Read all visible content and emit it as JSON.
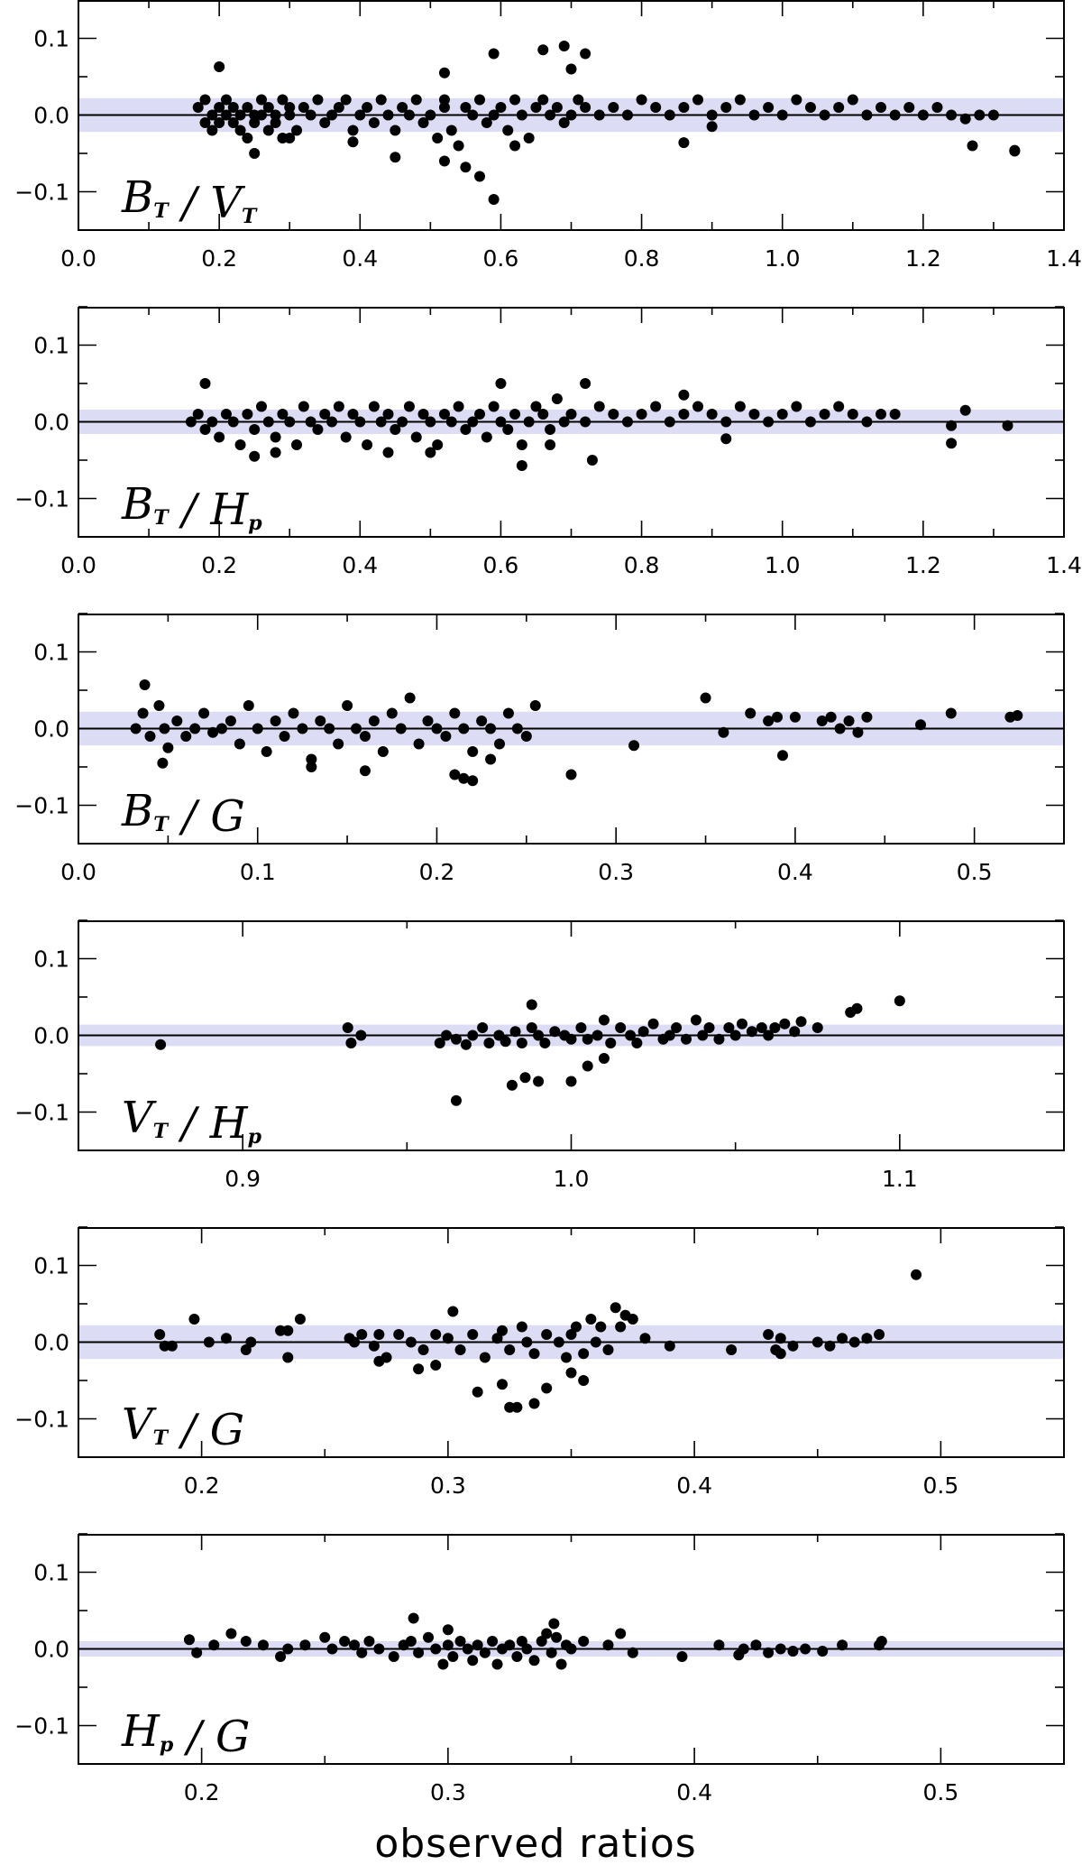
{
  "chart_data": [
    {
      "type": "scatter",
      "label_parts": [
        [
          "B",
          "T",
          "sub"
        ],
        [
          " / ",
          null,
          null
        ],
        [
          "V",
          "T",
          "sub"
        ]
      ],
      "xlim": [
        0.0,
        1.4
      ],
      "xticks": [
        0.0,
        0.2,
        0.4,
        0.6,
        0.8,
        1.0,
        1.2,
        1.4
      ],
      "ylim": [
        -0.15,
        0.15
      ],
      "yticks": [
        -0.1,
        0.0,
        0.1
      ],
      "band": [
        -0.022,
        0.022
      ],
      "x": [
        0.17,
        0.18,
        0.18,
        0.19,
        0.19,
        0.2,
        0.2,
        0.21,
        0.21,
        0.22,
        0.22,
        0.23,
        0.23,
        0.24,
        0.24,
        0.25,
        0.25,
        0.26,
        0.26,
        0.27,
        0.27,
        0.28,
        0.28,
        0.29,
        0.29,
        0.3,
        0.3,
        0.31,
        0.32,
        0.33,
        0.34,
        0.35,
        0.36,
        0.37,
        0.38,
        0.39,
        0.4,
        0.41,
        0.42,
        0.43,
        0.44,
        0.45,
        0.46,
        0.47,
        0.48,
        0.49,
        0.5,
        0.51,
        0.52,
        0.52,
        0.53,
        0.54,
        0.55,
        0.56,
        0.57,
        0.58,
        0.59,
        0.6,
        0.61,
        0.62,
        0.63,
        0.64,
        0.65,
        0.66,
        0.67,
        0.68,
        0.69,
        0.7,
        0.71,
        0.72,
        0.74,
        0.76,
        0.78,
        0.8,
        0.82,
        0.84,
        0.86,
        0.88,
        0.9,
        0.92,
        0.94,
        0.96,
        0.98,
        1.0,
        1.02,
        1.04,
        1.06,
        1.08,
        1.1,
        1.12,
        1.14,
        1.16,
        1.18,
        1.2,
        1.22,
        1.24,
        1.26,
        1.28,
        1.3,
        1.33,
        0.2,
        0.25,
        0.52,
        0.55,
        0.57,
        0.59,
        0.59,
        0.66,
        0.69,
        0.7,
        0.72,
        0.62,
        0.52,
        0.45,
        0.39,
        0.3,
        0.86,
        0.9,
        1.27,
        1.33
      ],
      "y": [
        0.01,
        -0.01,
        0.02,
        0.0,
        -0.02,
        0.01,
        -0.01,
        0.0,
        0.02,
        -0.01,
        0.01,
        0.0,
        -0.02,
        0.01,
        -0.03,
        0.0,
        -0.01,
        0.02,
        0.0,
        -0.02,
        0.01,
        -0.01,
        0.0,
        0.02,
        -0.03,
        0.01,
        0.0,
        -0.02,
        0.01,
        0.0,
        0.02,
        -0.01,
        0.0,
        0.01,
        0.02,
        -0.02,
        0.0,
        0.01,
        -0.01,
        0.02,
        0.0,
        -0.02,
        0.01,
        0.0,
        0.02,
        -0.01,
        0.0,
        -0.03,
        0.02,
        0.01,
        -0.02,
        -0.04,
        0.01,
        0.0,
        0.02,
        -0.01,
        0.0,
        0.01,
        -0.02,
        0.02,
        0.0,
        -0.03,
        0.01,
        0.02,
        0.0,
        0.01,
        -0.01,
        0.0,
        0.02,
        0.01,
        0.0,
        0.01,
        0.0,
        0.02,
        0.01,
        0.0,
        0.01,
        0.02,
        0.0,
        0.01,
        0.02,
        0.0,
        0.01,
        0.0,
        0.02,
        0.01,
        0.0,
        0.01,
        0.02,
        0.0,
        0.01,
        0.0,
        0.01,
        0.0,
        0.01,
        0.0,
        -0.005,
        0.0,
        0.0,
        -0.046,
        0.063,
        -0.05,
        0.055,
        -0.068,
        -0.08,
        0.08,
        -0.11,
        0.085,
        0.09,
        0.06,
        0.08,
        -0.04,
        -0.06,
        -0.055,
        -0.035,
        -0.03,
        -0.036,
        -0.015,
        -0.04,
        -0.047
      ]
    },
    {
      "type": "scatter",
      "label_parts": [
        [
          "B",
          "T",
          "sub"
        ],
        [
          " / ",
          null,
          null
        ],
        [
          "H",
          "p",
          "sub"
        ]
      ],
      "xlim": [
        0.0,
        1.4
      ],
      "xticks": [
        0.0,
        0.2,
        0.4,
        0.6,
        0.8,
        1.0,
        1.2,
        1.4
      ],
      "ylim": [
        -0.15,
        0.15
      ],
      "yticks": [
        -0.1,
        0.0,
        0.1
      ],
      "band": [
        -0.016,
        0.016
      ],
      "x": [
        0.16,
        0.17,
        0.18,
        0.19,
        0.2,
        0.21,
        0.22,
        0.23,
        0.24,
        0.25,
        0.26,
        0.27,
        0.28,
        0.29,
        0.3,
        0.31,
        0.32,
        0.33,
        0.34,
        0.35,
        0.36,
        0.37,
        0.38,
        0.39,
        0.4,
        0.41,
        0.42,
        0.43,
        0.44,
        0.45,
        0.46,
        0.47,
        0.48,
        0.49,
        0.5,
        0.51,
        0.52,
        0.53,
        0.54,
        0.55,
        0.56,
        0.57,
        0.58,
        0.59,
        0.6,
        0.61,
        0.62,
        0.63,
        0.64,
        0.65,
        0.66,
        0.67,
        0.68,
        0.69,
        0.7,
        0.72,
        0.74,
        0.76,
        0.78,
        0.8,
        0.82,
        0.84,
        0.86,
        0.88,
        0.9,
        0.92,
        0.94,
        0.96,
        0.98,
        1.0,
        1.02,
        1.04,
        1.06,
        1.08,
        1.1,
        1.12,
        1.14,
        1.16,
        1.24,
        1.26,
        1.32,
        0.18,
        0.25,
        0.28,
        0.44,
        0.5,
        0.6,
        0.63,
        0.67,
        0.72,
        0.73,
        0.86,
        0.92,
        1.24
      ],
      "y": [
        0.0,
        0.01,
        -0.01,
        0.0,
        -0.02,
        0.01,
        0.0,
        -0.03,
        0.01,
        -0.01,
        0.02,
        0.0,
        -0.02,
        0.01,
        0.0,
        -0.03,
        0.02,
        0.0,
        -0.01,
        0.01,
        0.0,
        0.02,
        -0.02,
        0.01,
        0.0,
        -0.03,
        0.02,
        0.0,
        0.01,
        -0.01,
        0.0,
        0.02,
        -0.02,
        0.01,
        0.0,
        -0.03,
        0.01,
        0.0,
        0.02,
        -0.01,
        0.0,
        0.01,
        -0.02,
        0.02,
        0.0,
        -0.01,
        0.01,
        -0.03,
        0.0,
        0.02,
        0.01,
        -0.01,
        0.03,
        0.0,
        0.01,
        0.0,
        0.02,
        0.01,
        0.0,
        0.01,
        0.02,
        0.0,
        0.01,
        0.02,
        0.01,
        0.0,
        0.02,
        0.01,
        0.0,
        0.01,
        0.02,
        0.0,
        0.01,
        0.02,
        0.01,
        0.0,
        0.01,
        0.01,
        -0.005,
        0.015,
        -0.005,
        0.05,
        -0.045,
        -0.04,
        -0.04,
        -0.04,
        0.05,
        -0.057,
        -0.03,
        0.05,
        -0.05,
        0.035,
        -0.022,
        -0.028
      ]
    },
    {
      "type": "scatter",
      "label_parts": [
        [
          "B",
          "T",
          "sub"
        ],
        [
          " / ",
          null,
          null
        ],
        [
          "G",
          null,
          null
        ]
      ],
      "xlim": [
        0.0,
        0.55
      ],
      "xticks": [
        0.0,
        0.1,
        0.2,
        0.3,
        0.4,
        0.5
      ],
      "ylim": [
        -0.15,
        0.15
      ],
      "yticks": [
        -0.1,
        0.0,
        0.1
      ],
      "band": [
        -0.022,
        0.022
      ],
      "x": [
        0.032,
        0.036,
        0.04,
        0.045,
        0.048,
        0.05,
        0.055,
        0.06,
        0.065,
        0.07,
        0.075,
        0.08,
        0.085,
        0.09,
        0.095,
        0.1,
        0.105,
        0.11,
        0.115,
        0.12,
        0.125,
        0.13,
        0.135,
        0.14,
        0.145,
        0.15,
        0.155,
        0.16,
        0.165,
        0.17,
        0.175,
        0.18,
        0.185,
        0.19,
        0.195,
        0.2,
        0.205,
        0.21,
        0.215,
        0.22,
        0.225,
        0.23,
        0.235,
        0.24,
        0.245,
        0.25,
        0.255,
        0.31,
        0.35,
        0.36,
        0.375,
        0.385,
        0.39,
        0.4,
        0.415,
        0.42,
        0.425,
        0.43,
        0.435,
        0.44,
        0.47,
        0.487,
        0.52,
        0.524,
        0.037,
        0.047,
        0.13,
        0.16,
        0.21,
        0.215,
        0.22,
        0.23,
        0.275,
        0.393
      ],
      "y": [
        0.0,
        0.02,
        -0.01,
        0.03,
        0.0,
        -0.025,
        0.01,
        -0.01,
        0.0,
        0.02,
        -0.005,
        0.0,
        0.01,
        -0.02,
        0.03,
        0.0,
        -0.03,
        0.01,
        -0.01,
        0.02,
        0.0,
        -0.04,
        0.01,
        0.0,
        -0.02,
        0.03,
        0.0,
        -0.01,
        0.01,
        -0.03,
        0.02,
        0.0,
        0.04,
        -0.02,
        0.01,
        0.0,
        -0.01,
        0.02,
        0.0,
        -0.03,
        0.01,
        0.0,
        -0.02,
        0.02,
        0.0,
        -0.01,
        0.03,
        -0.022,
        0.04,
        -0.005,
        0.02,
        0.01,
        0.015,
        0.015,
        0.01,
        0.015,
        0.0,
        0.01,
        -0.005,
        0.015,
        0.005,
        0.02,
        0.015,
        0.017,
        0.057,
        -0.045,
        -0.05,
        -0.055,
        -0.06,
        -0.065,
        -0.068,
        -0.04,
        -0.06,
        -0.035
      ]
    },
    {
      "type": "scatter",
      "label_parts": [
        [
          "V",
          "T",
          "sub"
        ],
        [
          " / ",
          null,
          null
        ],
        [
          "H",
          "p",
          "sub"
        ]
      ],
      "xlim": [
        0.85,
        1.15
      ],
      "xticks": [
        0.9,
        1.0,
        1.1
      ],
      "ylim": [
        -0.15,
        0.15
      ],
      "yticks": [
        -0.1,
        0.0,
        0.1
      ],
      "band": [
        -0.014,
        0.014
      ],
      "x": [
        0.875,
        0.932,
        0.933,
        0.936,
        0.96,
        0.962,
        0.965,
        0.968,
        0.97,
        0.973,
        0.975,
        0.978,
        0.98,
        0.983,
        0.985,
        0.988,
        0.99,
        0.992,
        0.995,
        0.998,
        1.0,
        1.003,
        1.005,
        1.008,
        1.01,
        1.012,
        1.015,
        1.018,
        1.02,
        1.022,
        1.025,
        1.028,
        1.03,
        1.032,
        1.035,
        1.038,
        1.04,
        1.042,
        1.045,
        1.048,
        1.05,
        1.052,
        1.055,
        1.058,
        1.06,
        1.062,
        1.065,
        1.068,
        1.07,
        1.075,
        1.085,
        1.087,
        1.1,
        0.965,
        0.982,
        0.986,
        0.99,
        1.0,
        1.01,
        1.005,
        0.988
      ],
      "y": [
        -0.012,
        0.01,
        -0.01,
        0.0,
        -0.01,
        0.0,
        -0.005,
        -0.012,
        0.0,
        0.01,
        -0.01,
        0.0,
        -0.008,
        0.005,
        -0.01,
        0.01,
        0.0,
        -0.01,
        0.005,
        0.0,
        -0.005,
        0.01,
        -0.005,
        0.0,
        0.02,
        -0.01,
        0.01,
        0.0,
        -0.01,
        0.005,
        0.015,
        -0.005,
        0.0,
        0.01,
        -0.005,
        0.02,
        0.0,
        0.01,
        -0.005,
        0.01,
        0.0,
        0.015,
        0.005,
        0.01,
        0.0,
        0.01,
        0.015,
        0.005,
        0.018,
        0.01,
        0.03,
        0.035,
        0.045,
        -0.085,
        -0.065,
        -0.055,
        -0.06,
        -0.06,
        -0.03,
        -0.04,
        0.04
      ]
    },
    {
      "type": "scatter",
      "label_parts": [
        [
          "V",
          "T",
          "sub"
        ],
        [
          " / ",
          null,
          null
        ],
        [
          "G",
          null,
          null
        ]
      ],
      "xlim": [
        0.15,
        0.55
      ],
      "xticks": [
        0.2,
        0.3,
        0.4,
        0.5
      ],
      "ylim": [
        -0.15,
        0.15
      ],
      "yticks": [
        -0.1,
        0.0,
        0.1
      ],
      "band": [
        -0.022,
        0.022
      ],
      "x": [
        0.183,
        0.185,
        0.188,
        0.197,
        0.203,
        0.21,
        0.218,
        0.22,
        0.232,
        0.235,
        0.24,
        0.26,
        0.262,
        0.265,
        0.27,
        0.272,
        0.275,
        0.28,
        0.285,
        0.29,
        0.295,
        0.3,
        0.302,
        0.305,
        0.31,
        0.315,
        0.32,
        0.322,
        0.325,
        0.33,
        0.332,
        0.335,
        0.34,
        0.345,
        0.348,
        0.35,
        0.352,
        0.355,
        0.358,
        0.36,
        0.362,
        0.365,
        0.368,
        0.37,
        0.372,
        0.375,
        0.38,
        0.39,
        0.415,
        0.43,
        0.433,
        0.435,
        0.44,
        0.45,
        0.455,
        0.46,
        0.465,
        0.47,
        0.475,
        0.49,
        0.235,
        0.272,
        0.288,
        0.295,
        0.312,
        0.322,
        0.325,
        0.328,
        0.335,
        0.34,
        0.35,
        0.355,
        0.435
      ],
      "y": [
        0.01,
        -0.005,
        -0.005,
        0.03,
        0.0,
        0.005,
        -0.01,
        0.0,
        0.015,
        -0.02,
        0.03,
        0.005,
        0.0,
        0.01,
        -0.005,
        0.01,
        -0.02,
        0.01,
        0.0,
        -0.01,
        0.01,
        0.005,
        0.04,
        -0.01,
        0.01,
        -0.02,
        0.005,
        0.015,
        -0.01,
        0.02,
        0.0,
        -0.015,
        0.01,
        0.0,
        -0.02,
        0.01,
        0.02,
        -0.015,
        0.03,
        0.0,
        0.02,
        -0.01,
        0.045,
        0.02,
        0.035,
        0.03,
        0.005,
        -0.005,
        -0.01,
        0.01,
        -0.01,
        0.005,
        -0.005,
        0.0,
        -0.005,
        0.005,
        0.0,
        0.005,
        0.01,
        0.088,
        0.015,
        -0.025,
        -0.035,
        -0.03,
        -0.065,
        -0.055,
        -0.085,
        -0.085,
        -0.08,
        -0.06,
        -0.04,
        -0.05,
        -0.015
      ]
    },
    {
      "type": "scatter",
      "label_parts": [
        [
          "H",
          "p",
          "sub"
        ],
        [
          " / ",
          null,
          null
        ],
        [
          "G",
          null,
          null
        ]
      ],
      "xlim": [
        0.15,
        0.55
      ],
      "xticks": [
        0.2,
        0.3,
        0.4,
        0.5
      ],
      "ylim": [
        -0.15,
        0.15
      ],
      "yticks": [
        -0.1,
        0.0,
        0.1
      ],
      "band": [
        -0.01,
        0.01
      ],
      "x": [
        0.195,
        0.198,
        0.205,
        0.212,
        0.218,
        0.225,
        0.235,
        0.242,
        0.25,
        0.253,
        0.258,
        0.262,
        0.265,
        0.268,
        0.272,
        0.278,
        0.282,
        0.285,
        0.288,
        0.292,
        0.295,
        0.298,
        0.3,
        0.302,
        0.305,
        0.308,
        0.31,
        0.312,
        0.315,
        0.318,
        0.32,
        0.322,
        0.325,
        0.328,
        0.33,
        0.332,
        0.335,
        0.338,
        0.34,
        0.342,
        0.344,
        0.346,
        0.348,
        0.35,
        0.355,
        0.365,
        0.37,
        0.375,
        0.395,
        0.41,
        0.418,
        0.42,
        0.425,
        0.43,
        0.435,
        0.44,
        0.445,
        0.452,
        0.46,
        0.475,
        0.286,
        0.343,
        0.476,
        0.232,
        0.3
      ],
      "y": [
        0.012,
        -0.005,
        0.005,
        0.02,
        0.01,
        0.005,
        0.0,
        0.005,
        0.015,
        0.0,
        0.01,
        0.005,
        -0.005,
        0.01,
        0.0,
        -0.01,
        0.005,
        0.01,
        -0.005,
        0.015,
        0.0,
        -0.02,
        0.005,
        -0.01,
        0.01,
        0.0,
        -0.015,
        0.005,
        -0.005,
        0.01,
        -0.02,
        0.0,
        0.005,
        -0.01,
        0.01,
        0.0,
        -0.015,
        0.01,
        0.02,
        -0.005,
        0.015,
        -0.02,
        0.005,
        0.0,
        0.01,
        0.005,
        0.02,
        -0.005,
        -0.01,
        0.005,
        -0.008,
        0.0,
        0.005,
        -0.005,
        0.0,
        -0.003,
        0.0,
        -0.003,
        0.005,
        0.005,
        0.04,
        0.033,
        0.01,
        -0.01,
        0.025
      ]
    }
  ],
  "xlabel": "observed ratios"
}
